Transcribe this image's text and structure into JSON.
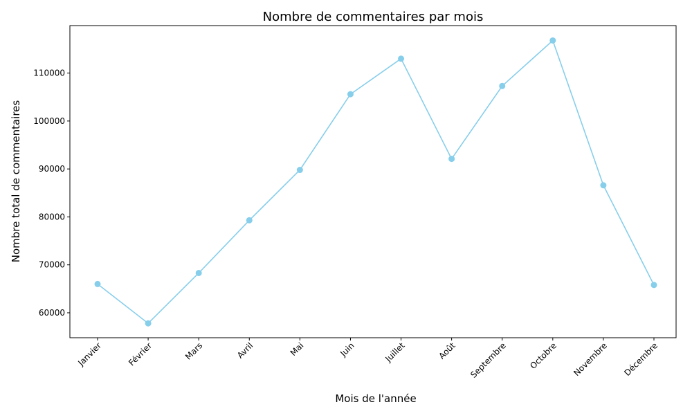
{
  "chart_data": {
    "type": "line",
    "title": "Nombre de commentaires par mois",
    "xlabel": "Mois de l'année",
    "ylabel": "Nombre total de commentaires",
    "categories": [
      "Janvier",
      "Février",
      "Mars",
      "Avril",
      "Mai",
      "Juin",
      "Juillet",
      "Août",
      "Septembre",
      "Octobre",
      "Novembre",
      "Décembre"
    ],
    "series": [
      {
        "values": [
          66000,
          57800,
          68300,
          79300,
          89800,
          105600,
          113000,
          92100,
          107300,
          116800,
          86600,
          65800
        ],
        "color": "#87ceeb",
        "marker": "circle"
      }
    ],
    "ylim": [
      54800,
      119900
    ],
    "yticks": [
      60000,
      70000,
      80000,
      90000,
      100000,
      110000
    ],
    "grid": false,
    "legend": "none"
  }
}
